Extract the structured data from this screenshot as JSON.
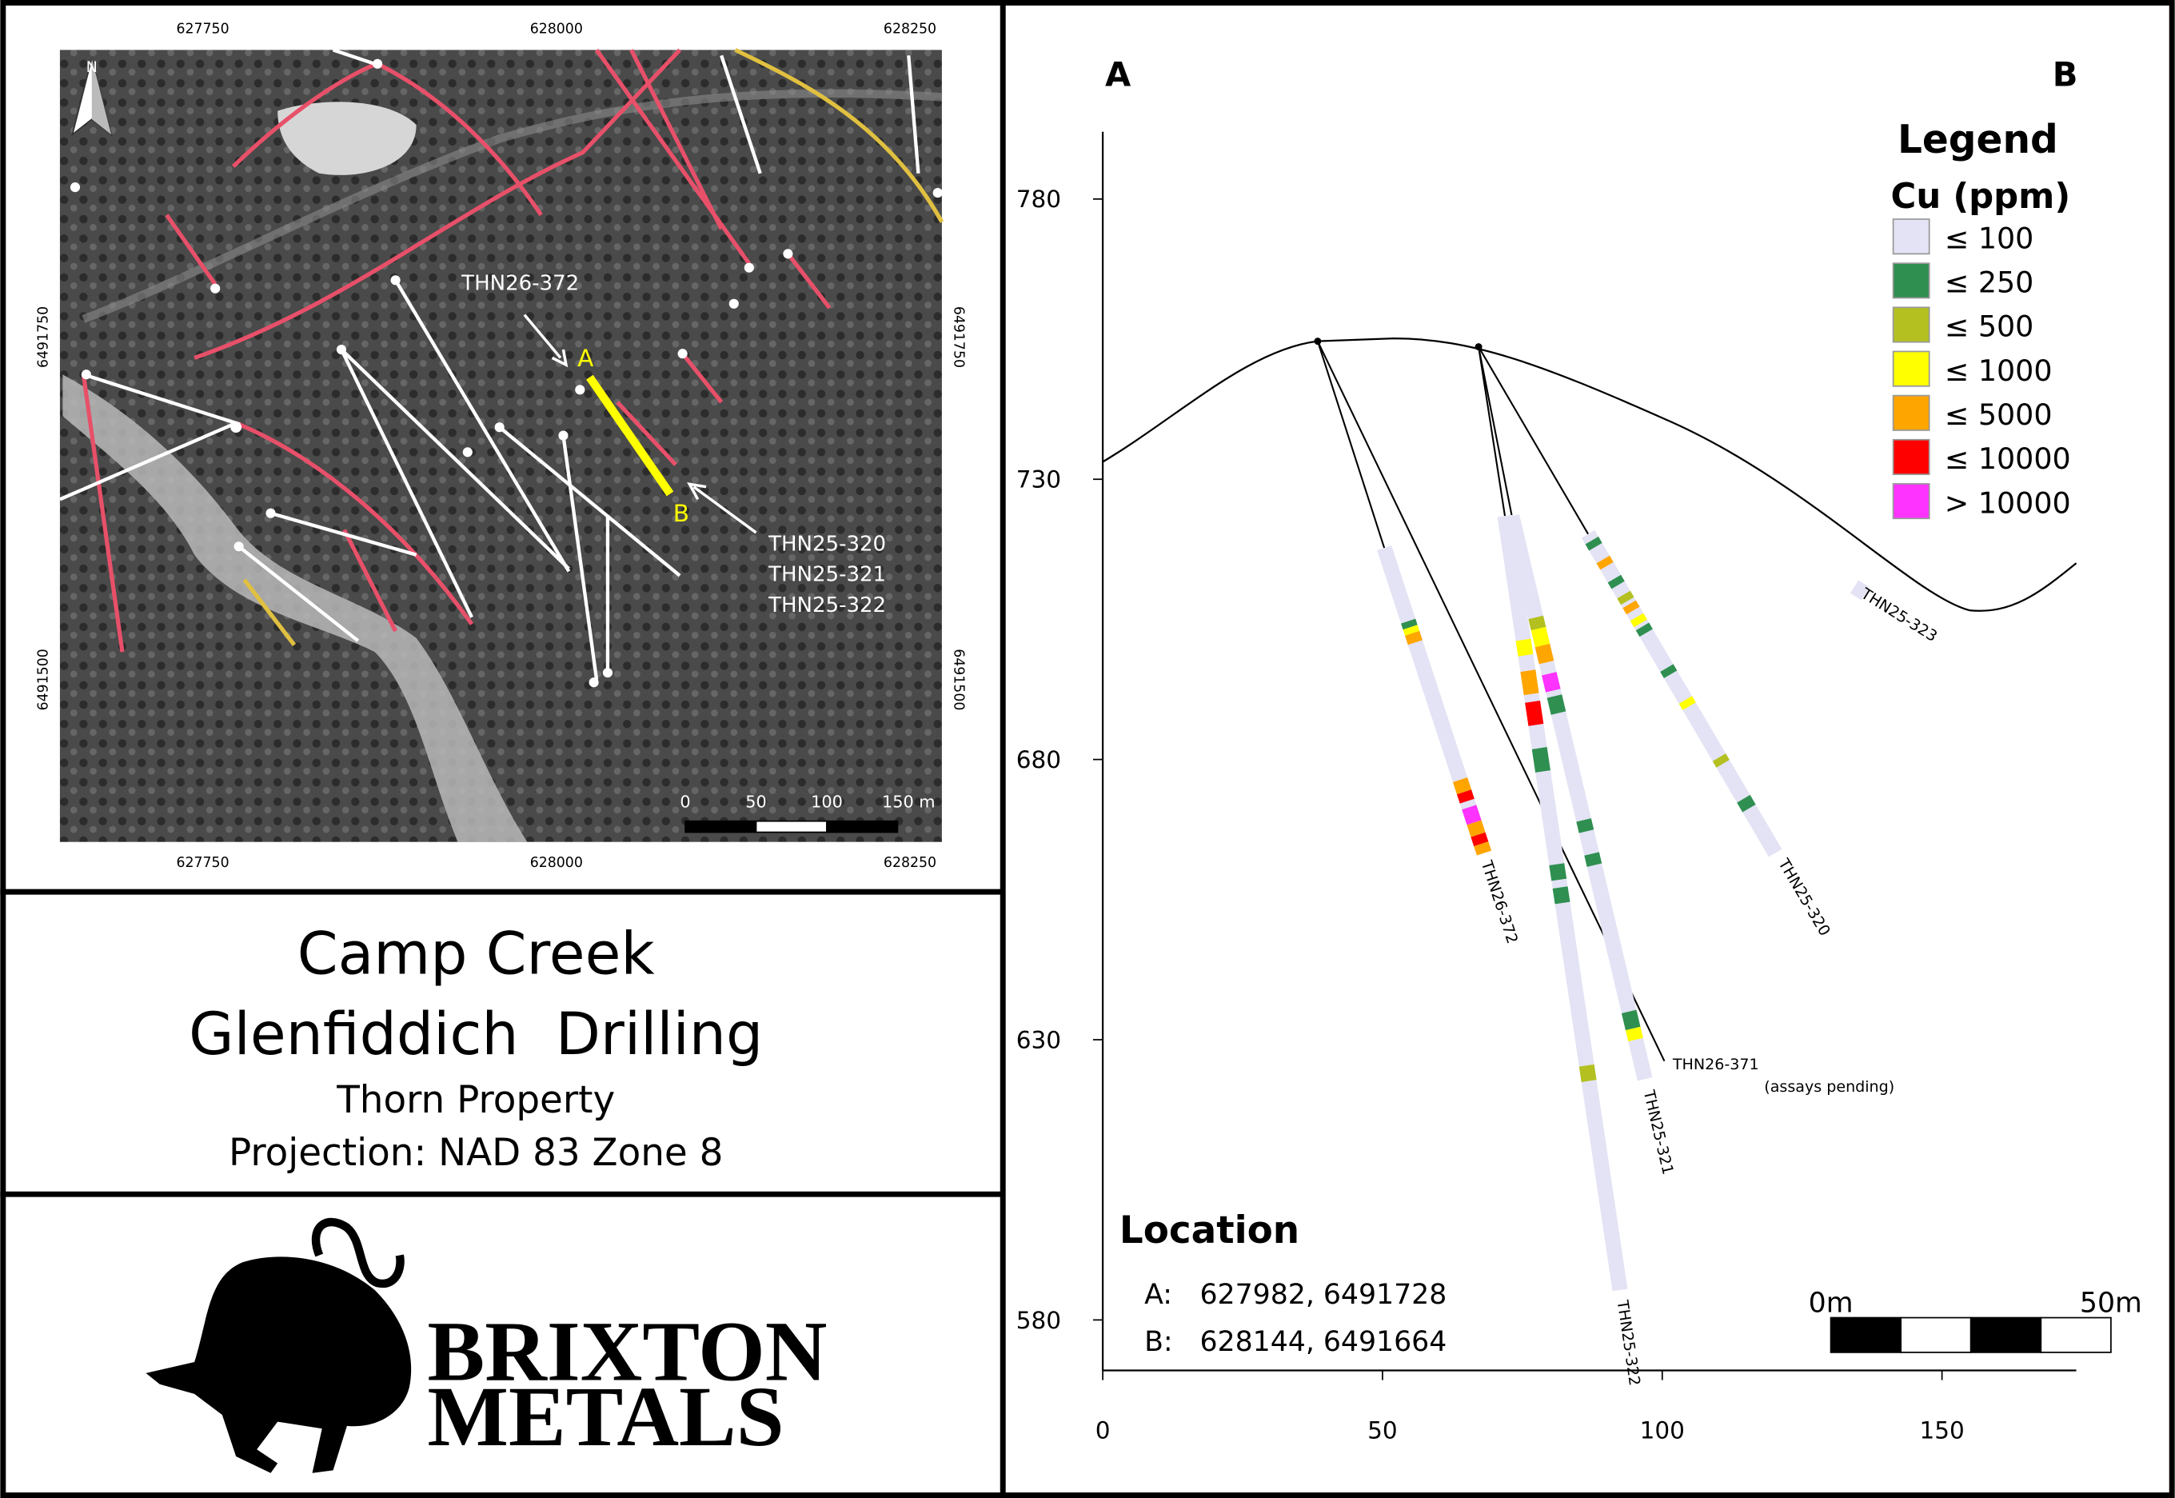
{
  "map": {
    "x_labels": [
      627750,
      628000,
      628250
    ],
    "y_labels": [
      6491750,
      6491500
    ],
    "north": "N",
    "callout_top": "THN26-372",
    "callout_bottom": [
      "THN25-320",
      "THN25-321",
      "THN25-322"
    ],
    "point_a": "A",
    "point_b": "B",
    "scale_labels": [
      "0",
      "50",
      "100",
      "150 m"
    ]
  },
  "title": {
    "line1": "Camp Creek",
    "line2": "Glenfiddich  Drilling",
    "line3": "Thorn Property",
    "line4": "Projection: NAD 83 Zone 8"
  },
  "logo": {
    "line1": "BRIXTON",
    "line2": "METALS"
  },
  "section": {
    "end_a": "A",
    "end_b": "B",
    "xlim": [
      0,
      174
    ],
    "ylim": [
      571,
      792
    ],
    "xticks": [
      0,
      50,
      100,
      150
    ],
    "yticks": [
      580,
      630,
      680,
      730,
      780
    ],
    "legend": {
      "title": "Legend",
      "subtitle": "Cu (ppm)",
      "items": [
        {
          "label": "≤ 100",
          "color": "#e3e3f5"
        },
        {
          "label": "≤ 250",
          "color": "#2f8f50"
        },
        {
          "label": "≤ 500",
          "color": "#b3c020"
        },
        {
          "label": "≤ 1000",
          "color": "#ffff00"
        },
        {
          "label": "≤ 5000",
          "color": "#ffa500"
        },
        {
          "label": "≤ 10000",
          "color": "#ff0000"
        },
        {
          "label": "> 10000",
          "color": "#ff33ff"
        }
      ]
    },
    "holes": [
      "THN26-372",
      "THN26-371",
      "THN25-321",
      "THN25-322",
      "THN25-320",
      "THN25-323"
    ],
    "pending_note": "(assays pending)",
    "location": {
      "title": "Location",
      "rows": [
        [
          "A:",
          "627982, 6491728"
        ],
        [
          "B:",
          "628144, 6491664"
        ]
      ]
    },
    "scale_labels": [
      "0m",
      "50m"
    ]
  }
}
